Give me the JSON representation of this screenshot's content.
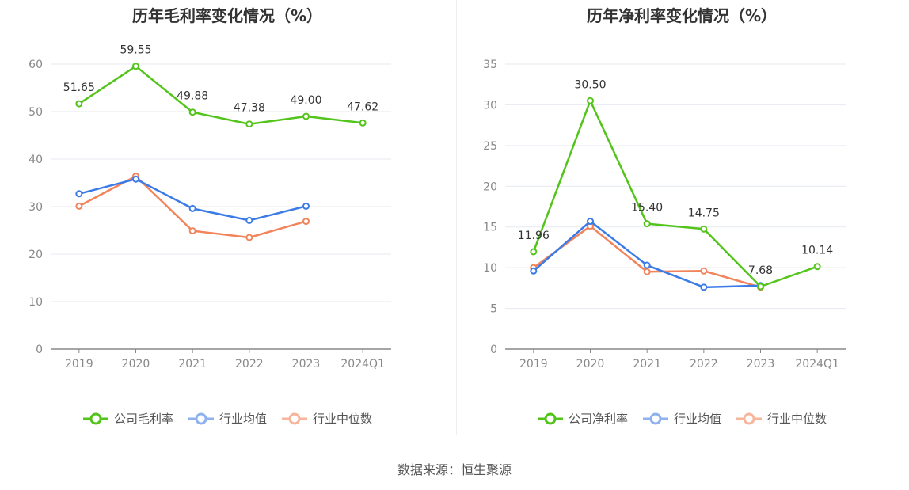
{
  "source_text": "数据来源：恒生聚源",
  "chart_data": [
    {
      "type": "line",
      "title": "历年毛利率变化情况（%）",
      "categories": [
        "2019",
        "2020",
        "2021",
        "2022",
        "2023",
        "2024Q1"
      ],
      "ylim": [
        0,
        60
      ],
      "yticks": [
        0,
        10,
        20,
        30,
        40,
        50,
        60
      ],
      "grid": true,
      "legend_position": "bottom",
      "series": [
        {
          "name": "公司毛利率",
          "color": "#52c41a",
          "values": [
            51.65,
            59.55,
            49.88,
            47.38,
            49.0,
            47.62
          ],
          "labels": [
            "51.65",
            "59.55",
            "49.88",
            "47.38",
            "49.00",
            "47.62"
          ]
        },
        {
          "name": "行业均值",
          "color": "#3b7be8",
          "values": [
            32.7,
            35.8,
            29.6,
            27.1,
            30.1,
            null
          ]
        },
        {
          "name": "行业中位数",
          "color": "#f2845c",
          "values": [
            30.1,
            36.4,
            24.9,
            23.5,
            26.9,
            null
          ]
        }
      ]
    },
    {
      "type": "line",
      "title": "历年净利率变化情况（%）",
      "categories": [
        "2019",
        "2020",
        "2021",
        "2022",
        "2023",
        "2024Q1"
      ],
      "ylim": [
        0,
        35
      ],
      "yticks": [
        0,
        5,
        10,
        15,
        20,
        25,
        30,
        35
      ],
      "grid": true,
      "legend_position": "bottom",
      "series": [
        {
          "name": "公司净利率",
          "color": "#52c41a",
          "values": [
            11.96,
            30.5,
            15.4,
            14.75,
            7.68,
            10.14
          ],
          "labels": [
            "11.96",
            "30.50",
            "15.40",
            "14.75",
            "7.68",
            "10.14"
          ]
        },
        {
          "name": "行业均值",
          "color": "#3b7be8",
          "values": [
            9.6,
            15.7,
            10.3,
            7.6,
            7.8,
            null
          ]
        },
        {
          "name": "行业中位数",
          "color": "#f2845c",
          "values": [
            10.0,
            15.1,
            9.5,
            9.6,
            7.6,
            null
          ]
        }
      ]
    }
  ]
}
